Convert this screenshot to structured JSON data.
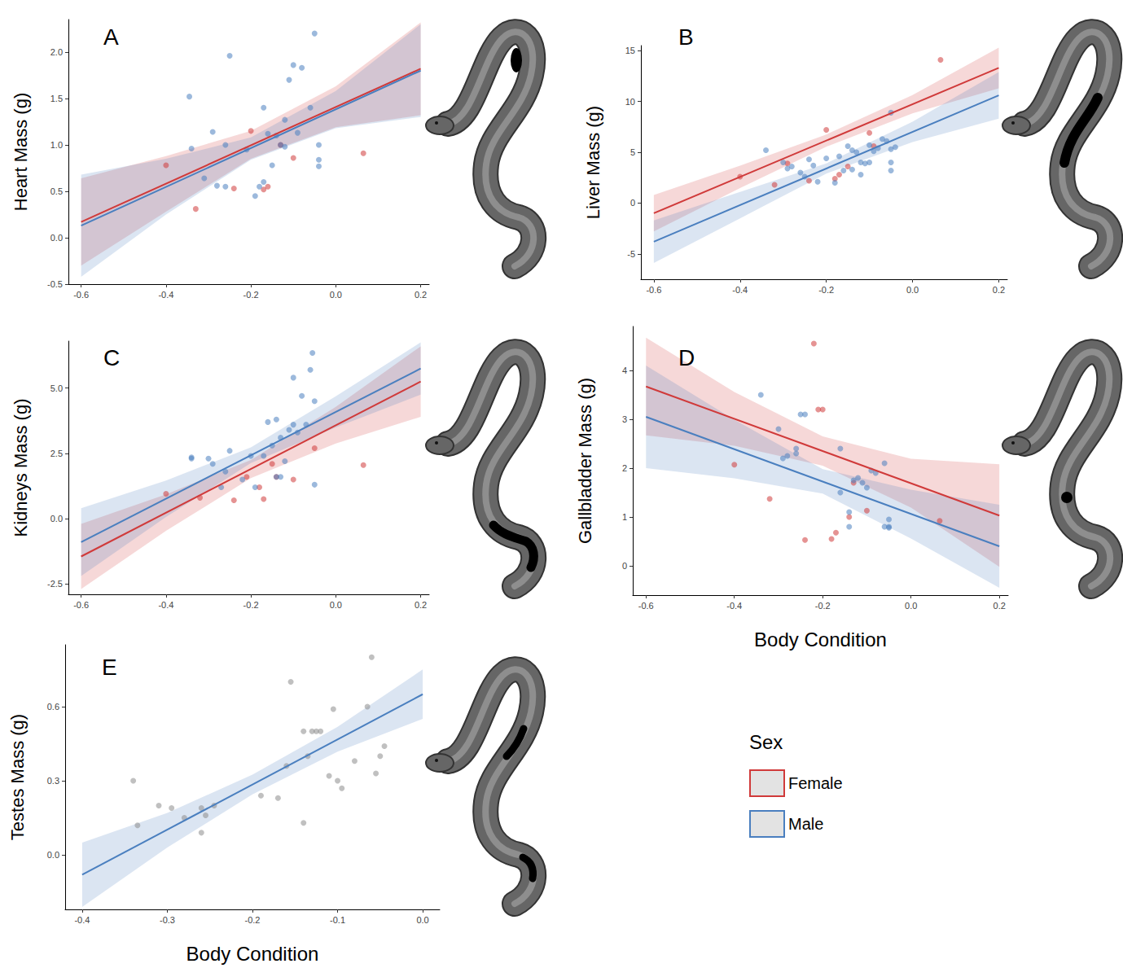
{
  "legend_title": "Sex",
  "legend": "bottom right",
  "chart_data": [
    {
      "type": "scatter",
      "title": "A",
      "ylabel": "Heart Mass (g)",
      "xlim": [
        -0.63,
        0.22
      ],
      "xticks": [
        -0.6,
        -0.4,
        -0.2,
        {
          "value": 0,
          "label": "0.0"
        },
        0.2
      ],
      "ylim": [
        -0.5,
        2.35
      ],
      "yticks": [
        -0.5,
        {
          "value": 0,
          "label": "0.0"
        },
        0.5,
        {
          "value": 1,
          "label": "1.0"
        },
        1.5,
        {
          "value": 2,
          "label": "2.0"
        }
      ],
      "series": [
        {
          "name": "Female",
          "color": "#d03a3a",
          "x": [
            -0.4,
            -0.33,
            -0.24,
            -0.2,
            -0.17,
            -0.16,
            -0.1,
            0.065,
            -0.13
          ],
          "values": [
            0.78,
            0.31,
            0.53,
            1.15,
            0.52,
            0.55,
            0.86,
            0.91,
            1.0
          ],
          "fit_x": [
            -0.6,
            0.2
          ],
          "fit_values": [
            0.17,
            1.82
          ],
          "band_x": [
            -0.6,
            -0.4,
            -0.2,
            0,
            0.2
          ],
          "band_lower": [
            -0.3,
            0.28,
            0.85,
            1.19,
            1.32
          ],
          "band_upper": [
            0.64,
            0.88,
            1.15,
            1.63,
            2.32
          ]
        },
        {
          "name": "Male",
          "color": "#4a7fbf",
          "x": [
            -0.345,
            -0.34,
            -0.29,
            -0.28,
            -0.26,
            -0.25,
            -0.26,
            -0.31,
            -0.21,
            -0.19,
            -0.18,
            -0.17,
            -0.17,
            -0.15,
            -0.14,
            -0.13,
            -0.12,
            -0.11,
            -0.1,
            -0.09,
            -0.08,
            -0.06,
            -0.05,
            -0.04,
            -0.04,
            -0.04,
            -0.12,
            -0.16
          ],
          "values": [
            1.52,
            0.96,
            1.14,
            0.56,
            1.0,
            1.96,
            0.55,
            0.64,
            0.95,
            0.45,
            0.55,
            0.6,
            1.4,
            0.78,
            1.1,
            1.0,
            1.27,
            1.7,
            1.86,
            1.13,
            1.83,
            1.4,
            2.2,
            1.0,
            0.77,
            0.84,
            0.98,
            1.12
          ],
          "fit_x": [
            -0.6,
            0.2
          ],
          "fit_values": [
            0.13,
            1.8
          ],
          "band_x": [
            -0.6,
            -0.4,
            -0.2,
            0,
            0.2
          ],
          "band_lower": [
            -0.42,
            0.25,
            0.84,
            1.18,
            1.3
          ],
          "band_upper": [
            0.68,
            0.85,
            1.08,
            1.58,
            2.3
          ]
        }
      ]
    },
    {
      "type": "scatter",
      "title": "B",
      "ylabel": "Liver Mass (g)",
      "xlim": [
        -0.63,
        0.22
      ],
      "xticks": [
        -0.6,
        -0.4,
        -0.2,
        {
          "value": 0,
          "label": "0.0"
        },
        0.2
      ],
      "ylim": [
        -7.5,
        15.5
      ],
      "yticks": [
        -5,
        0,
        5,
        10,
        15
      ],
      "series": [
        {
          "name": "Female",
          "color": "#d03a3a",
          "x": [
            -0.4,
            -0.32,
            -0.29,
            -0.2,
            -0.18,
            -0.17,
            -0.15,
            -0.1,
            -0.09,
            0.065,
            -0.24
          ],
          "values": [
            2.6,
            1.8,
            3.9,
            7.2,
            2.4,
            2.8,
            3.6,
            6.9,
            5.6,
            14.1,
            2.2
          ],
          "fit_x": [
            -0.6,
            0.2
          ],
          "fit_values": [
            -1.0,
            13.3
          ],
          "band_x": [
            -0.6,
            -0.4,
            -0.2,
            0,
            0.2
          ],
          "band_lower": [
            -2.8,
            1.48,
            5.55,
            8.83,
            11.3
          ],
          "band_upper": [
            0.8,
            3.68,
            6.75,
            10.63,
            15.3
          ]
        },
        {
          "name": "Male",
          "color": "#4a7fbf",
          "x": [
            -0.34,
            -0.3,
            -0.29,
            -0.28,
            -0.26,
            -0.25,
            -0.24,
            -0.23,
            -0.22,
            -0.2,
            -0.18,
            -0.17,
            -0.16,
            -0.15,
            -0.14,
            -0.14,
            -0.13,
            -0.12,
            -0.11,
            -0.1,
            -0.1,
            -0.09,
            -0.08,
            -0.07,
            -0.06,
            -0.05,
            -0.05,
            -0.05,
            -0.05,
            -0.04,
            -0.12
          ],
          "values": [
            5.2,
            4.0,
            3.4,
            3.6,
            3.0,
            2.6,
            4.3,
            3.7,
            2.1,
            4.4,
            2.0,
            4.6,
            3.2,
            5.6,
            3.3,
            5.2,
            5.0,
            4.0,
            3.9,
            4.0,
            5.7,
            5.1,
            5.4,
            6.3,
            6.1,
            8.9,
            5.3,
            4.0,
            3.2,
            5.5,
            2.8
          ],
          "fit_x": [
            -0.6,
            0.2
          ],
          "fit_values": [
            -3.8,
            10.6
          ],
          "band_x": [
            -0.6,
            -0.4,
            -0.2,
            0,
            0.2
          ],
          "band_lower": [
            -5.9,
            -1.5,
            2.9,
            6.0,
            8.3
          ],
          "band_upper": [
            -1.7,
            1.1,
            3.9,
            8.0,
            12.9
          ]
        }
      ]
    },
    {
      "type": "scatter",
      "title": "C",
      "ylabel": "Kidneys Mass (g)",
      "xlim": [
        -0.63,
        0.22
      ],
      "xticks": [
        -0.6,
        -0.4,
        -0.2,
        {
          "value": 0,
          "label": "0.0"
        },
        0.2
      ],
      "ylim": [
        -2.9,
        6.8
      ],
      "yticks": [
        -2.5,
        {
          "value": 0,
          "label": "0.0"
        },
        2.5,
        {
          "value": 5,
          "label": "5.0"
        }
      ],
      "series": [
        {
          "name": "Female",
          "color": "#d03a3a",
          "x": [
            -0.4,
            -0.32,
            -0.24,
            -0.21,
            -0.18,
            -0.17,
            -0.15,
            -0.1,
            -0.05,
            0.065,
            -0.14
          ],
          "values": [
            0.95,
            0.8,
            0.7,
            1.6,
            1.2,
            0.75,
            2.1,
            1.5,
            2.7,
            2.05,
            1.6
          ],
          "fit_x": [
            -0.6,
            0.2
          ],
          "fit_values": [
            -1.45,
            5.25
          ],
          "band_x": [
            -0.6,
            -0.4,
            -0.2,
            0,
            0.2
          ],
          "band_lower": [
            -2.7,
            -0.47,
            1.55,
            2.88,
            3.9
          ],
          "band_upper": [
            -0.2,
            0.93,
            2.25,
            4.28,
            6.6
          ]
        },
        {
          "name": "Male",
          "color": "#4a7fbf",
          "x": [
            -0.34,
            -0.34,
            -0.3,
            -0.29,
            -0.27,
            -0.26,
            -0.25,
            -0.22,
            -0.2,
            -0.19,
            -0.17,
            -0.16,
            -0.15,
            -0.14,
            -0.13,
            -0.12,
            -0.11,
            -0.1,
            -0.09,
            -0.08,
            -0.07,
            -0.06,
            -0.055,
            -0.05,
            -0.05,
            -0.13,
            -0.14,
            -0.1
          ],
          "values": [
            2.35,
            2.3,
            2.3,
            2.1,
            1.2,
            1.8,
            2.6,
            1.5,
            2.4,
            1.2,
            2.4,
            3.7,
            2.8,
            3.8,
            3.1,
            2.2,
            3.4,
            5.4,
            3.3,
            4.7,
            3.6,
            5.7,
            6.35,
            4.5,
            1.3,
            1.6,
            1.6,
            3.6
          ],
          "fit_x": [
            -0.6,
            0.2
          ],
          "fit_values": [
            -0.9,
            5.75
          ],
          "band_x": [
            -0.6,
            -0.4,
            -0.2,
            0,
            0.2
          ],
          "band_lower": [
            -2.2,
            0.06,
            2.13,
            3.49,
            4.75
          ],
          "band_upper": [
            0.4,
            1.46,
            2.73,
            4.69,
            6.75
          ]
        }
      ]
    },
    {
      "type": "scatter",
      "title": "D",
      "ylabel": "Gallbladder Mass (g)",
      "xlabel": "Body Condition",
      "xlim": [
        -0.63,
        0.22
      ],
      "xticks": [
        -0.6,
        -0.4,
        -0.2,
        {
          "value": 0,
          "label": "0.0"
        },
        0.2
      ],
      "ylim": [
        -0.6,
        4.9
      ],
      "yticks": [
        0,
        1,
        2,
        3,
        4
      ],
      "series": [
        {
          "name": "Female",
          "color": "#d03a3a",
          "x": [
            -0.4,
            -0.32,
            -0.24,
            -0.22,
            -0.21,
            -0.2,
            -0.18,
            -0.17,
            -0.14,
            -0.13,
            -0.1,
            0.065
          ],
          "values": [
            2.07,
            1.37,
            0.53,
            4.55,
            3.2,
            3.2,
            0.55,
            0.68,
            1.0,
            1.7,
            1.13,
            0.92
          ],
          "fit_x": [
            -0.6,
            0.2
          ],
          "fit_values": [
            3.67,
            1.03
          ],
          "band_x": [
            -0.6,
            -0.4,
            -0.2,
            0,
            0.2
          ],
          "band_lower": [
            2.67,
            2.46,
            2.05,
            1.19,
            -0.02
          ],
          "band_upper": [
            4.67,
            3.56,
            2.65,
            2.19,
            2.08
          ]
        },
        {
          "name": "Male",
          "color": "#4a7fbf",
          "x": [
            -0.34,
            -0.3,
            -0.29,
            -0.28,
            -0.26,
            -0.26,
            -0.25,
            -0.24,
            -0.16,
            -0.16,
            -0.14,
            -0.13,
            -0.12,
            -0.11,
            -0.1,
            -0.09,
            -0.08,
            -0.06,
            -0.06,
            -0.05,
            -0.05,
            -0.05,
            -0.14
          ],
          "values": [
            3.5,
            2.8,
            2.2,
            2.25,
            2.3,
            2.4,
            3.1,
            3.1,
            2.4,
            1.5,
            1.1,
            1.75,
            1.8,
            1.7,
            1.6,
            1.95,
            1.9,
            2.1,
            0.8,
            0.8,
            0.95,
            0.78,
            0.8
          ],
          "fit_x": [
            -0.6,
            0.2
          ],
          "fit_values": [
            3.05,
            0.4
          ],
          "band_x": [
            -0.6,
            -0.4,
            -0.2,
            0,
            0.2
          ],
          "band_lower": [
            2.0,
            1.79,
            1.48,
            0.56,
            -0.45
          ],
          "band_upper": [
            4.1,
            2.99,
            1.98,
            1.56,
            1.25
          ]
        }
      ]
    },
    {
      "type": "scatter",
      "title": "E",
      "ylabel": "Testes Mass (g)",
      "xlabel": "Body Condition",
      "xlim": [
        -0.42,
        0.02
      ],
      "xticks": [
        -0.4,
        -0.3,
        -0.2,
        -0.1,
        {
          "value": 0,
          "label": "0.0"
        }
      ],
      "ylim": [
        -0.22,
        0.85
      ],
      "yticks": [
        {
          "value": 0,
          "label": "0.0"
        },
        0.3,
        0.6
      ],
      "series": [
        {
          "name": "Male",
          "color": "#4a7fbf",
          "x": [
            -0.34,
            -0.335,
            -0.31,
            -0.295,
            -0.28,
            -0.26,
            -0.26,
            -0.255,
            -0.245,
            -0.19,
            -0.17,
            -0.16,
            -0.155,
            -0.14,
            -0.14,
            -0.135,
            -0.13,
            -0.125,
            -0.12,
            -0.11,
            -0.105,
            -0.1,
            -0.095,
            -0.08,
            -0.065,
            -0.06,
            -0.055,
            -0.05,
            -0.045
          ],
          "values": [
            0.3,
            0.12,
            0.2,
            0.19,
            0.15,
            0.19,
            0.09,
            0.16,
            0.2,
            0.24,
            0.23,
            0.36,
            0.7,
            0.5,
            0.13,
            0.4,
            0.5,
            0.5,
            0.5,
            0.32,
            0.59,
            0.3,
            0.27,
            0.38,
            0.6,
            0.8,
            0.33,
            0.4,
            0.44
          ],
          "colors": [
            "#8c8c8c",
            "#8c8c8c",
            "#8c8c8c",
            "#8c8c8c",
            "#8c8c8c",
            "#8c8c8c",
            "#8c8c8c",
            "#8c8c8c",
            "#8c8c8c",
            "#8c8c8c",
            "#8c8c8c",
            "#8c8c8c",
            "#8c8c8c",
            "#8c8c8c",
            "#8c8c8c",
            "#8c8c8c",
            "#8c8c8c",
            "#8c8c8c",
            "#8c8c8c",
            "#8c8c8c",
            "#8c8c8c",
            "#8c8c8c",
            "#8c8c8c",
            "#8c8c8c",
            "#8c8c8c",
            "#8c8c8c",
            "#8c8c8c",
            "#8c8c8c",
            "#8c8c8c"
          ],
          "fit_x": [
            -0.4,
            0
          ],
          "fit_values": [
            -0.08,
            0.65
          ],
          "band_x": [
            -0.4,
            -0.3,
            -0.2,
            -0.1,
            0
          ],
          "band_lower": [
            -0.21,
            0.03,
            0.245,
            0.418,
            0.55
          ],
          "band_upper": [
            0.05,
            0.17,
            0.325,
            0.518,
            0.75
          ]
        }
      ]
    }
  ]
}
